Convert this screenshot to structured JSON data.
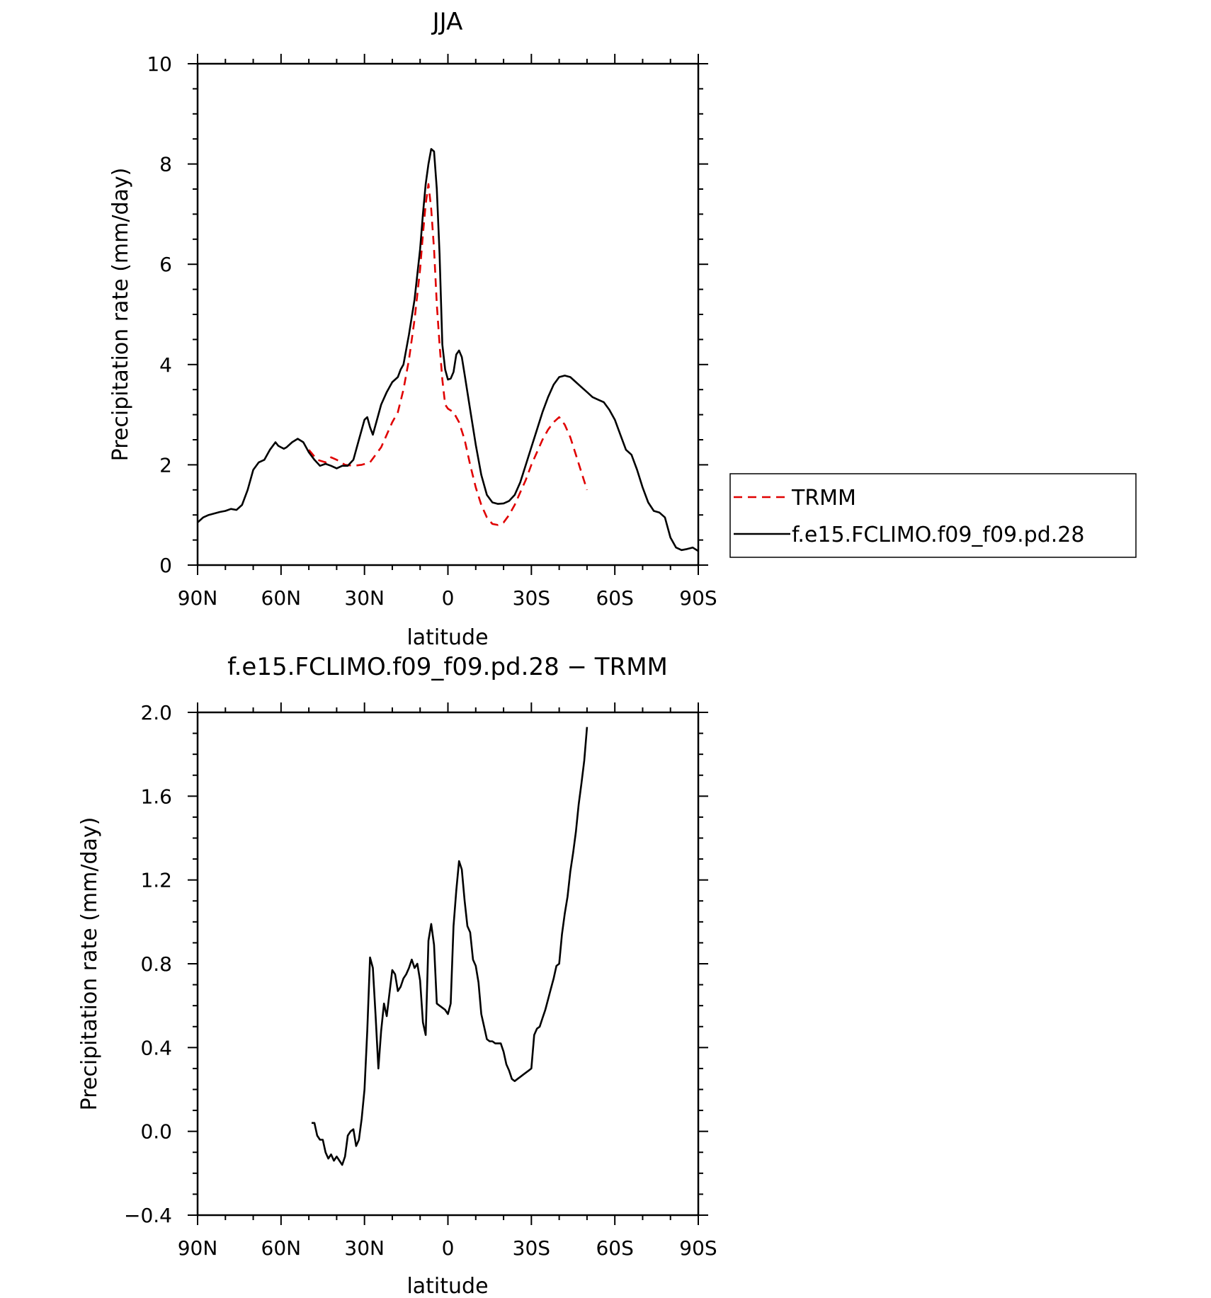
{
  "chart_data": [
    {
      "type": "line",
      "title": "JJA",
      "xlabel": "latitude",
      "ylabel": "Precipitation rate (mm/day)",
      "xlim": [
        90,
        -90
      ],
      "ylim": [
        0,
        10
      ],
      "xticks": [
        90,
        60,
        30,
        0,
        -30,
        -60,
        -90
      ],
      "xtick_labels": [
        "90N",
        "60N",
        "30N",
        "0",
        "30S",
        "60S",
        "90S"
      ],
      "yticks": [
        0,
        2,
        4,
        6,
        8,
        10
      ],
      "ytick_labels": [
        "0",
        "2",
        "4",
        "6",
        "8",
        "10"
      ],
      "legend_placement": "right",
      "series": [
        {
          "name": "TRMM",
          "color": "#e00000",
          "dash": true,
          "x": [
            50,
            47,
            44,
            42,
            40,
            37,
            34,
            31,
            28,
            26,
            24,
            22,
            20,
            18,
            16,
            14,
            12,
            10,
            9,
            8,
            7,
            6,
            5,
            4,
            3,
            2,
            1,
            0,
            -2,
            -4,
            -6,
            -8,
            -10,
            -12,
            -14,
            -16,
            -18,
            -20,
            -22,
            -24,
            -26,
            -28,
            -30,
            -32,
            -34,
            -36,
            -38,
            -40,
            -42,
            -44,
            -46,
            -48,
            -50
          ],
          "values": [
            2.3,
            2.1,
            2.05,
            2.15,
            2.1,
            2.0,
            1.98,
            2.0,
            2.05,
            2.2,
            2.35,
            2.6,
            2.85,
            3.05,
            3.5,
            4.1,
            4.9,
            5.9,
            6.6,
            7.2,
            7.6,
            7.1,
            6.3,
            5.2,
            4.4,
            3.7,
            3.2,
            3.12,
            3.05,
            2.85,
            2.5,
            2.0,
            1.55,
            1.2,
            0.95,
            0.82,
            0.8,
            0.85,
            1.0,
            1.2,
            1.45,
            1.7,
            2.0,
            2.25,
            2.5,
            2.7,
            2.85,
            2.95,
            2.8,
            2.55,
            2.2,
            1.85,
            1.5
          ]
        },
        {
          "name": "f.e15.FCLIMO.f09_f09.pd.28",
          "color": "#000000",
          "dash": false,
          "x": [
            90,
            88,
            86,
            84,
            82,
            80,
            78,
            76,
            74,
            72,
            70,
            68,
            66,
            64,
            62,
            61,
            60,
            59,
            58,
            56,
            54,
            52,
            50,
            48,
            46,
            44,
            42,
            40,
            38,
            36,
            34,
            32,
            30,
            29,
            28,
            27,
            25,
            24,
            22,
            20,
            18,
            17,
            16,
            14,
            12,
            10,
            9,
            8,
            7,
            6,
            5,
            4,
            3,
            2,
            1,
            0,
            -1,
            -2,
            -3,
            -4,
            -5,
            -6,
            -8,
            -10,
            -12,
            -14,
            -16,
            -18,
            -20,
            -22,
            -24,
            -26,
            -28,
            -30,
            -32,
            -34,
            -36,
            -38,
            -40,
            -42,
            -44,
            -46,
            -48,
            -50,
            -52,
            -54,
            -56,
            -58,
            -60,
            -62,
            -64,
            -66,
            -68,
            -70,
            -72,
            -74,
            -76,
            -78,
            -80,
            -82,
            -84,
            -86,
            -88,
            -90
          ],
          "values": [
            0.85,
            0.95,
            1.0,
            1.03,
            1.06,
            1.08,
            1.12,
            1.1,
            1.2,
            1.5,
            1.9,
            2.05,
            2.1,
            2.3,
            2.45,
            2.38,
            2.35,
            2.32,
            2.35,
            2.45,
            2.52,
            2.45,
            2.25,
            2.1,
            1.98,
            2.02,
            1.98,
            1.93,
            1.98,
            1.98,
            2.1,
            2.5,
            2.9,
            2.95,
            2.75,
            2.6,
            3.0,
            3.2,
            3.45,
            3.65,
            3.75,
            3.9,
            4.0,
            4.6,
            5.3,
            6.3,
            7.0,
            7.6,
            8.0,
            8.3,
            8.25,
            7.5,
            6.2,
            4.4,
            3.9,
            3.7,
            3.72,
            3.85,
            4.2,
            4.28,
            4.15,
            3.8,
            3.1,
            2.4,
            1.8,
            1.4,
            1.25,
            1.22,
            1.23,
            1.28,
            1.4,
            1.65,
            2.0,
            2.35,
            2.7,
            3.05,
            3.35,
            3.6,
            3.75,
            3.78,
            3.75,
            3.65,
            3.55,
            3.45,
            3.35,
            3.3,
            3.25,
            3.1,
            2.9,
            2.6,
            2.3,
            2.2,
            1.9,
            1.55,
            1.25,
            1.08,
            1.05,
            0.95,
            0.55,
            0.35,
            0.3,
            0.32,
            0.35,
            0.28
          ]
        }
      ]
    },
    {
      "type": "line",
      "title": "f.e15.FCLIMO.f09_f09.pd.28 − TRMM",
      "xlabel": "latitude",
      "ylabel": "Precipitation rate (mm/day)",
      "xlim": [
        90,
        -90
      ],
      "ylim": [
        -0.4,
        2.0
      ],
      "xticks": [
        90,
        60,
        30,
        0,
        -30,
        -60,
        -90
      ],
      "xtick_labels": [
        "90N",
        "60N",
        "30N",
        "0",
        "30S",
        "60S",
        "90S"
      ],
      "yticks": [
        -0.4,
        0.0,
        0.4,
        0.8,
        1.2,
        1.6,
        2.0
      ],
      "ytick_labels": [
        "−0.4",
        "0.0",
        "0.4",
        "0.8",
        "1.2",
        "1.6",
        "2.0"
      ],
      "series": [
        {
          "color": "#000000",
          "dash": false,
          "x": [
            49,
            48,
            47,
            46,
            45,
            44,
            43,
            42,
            41,
            40,
            39,
            38,
            37,
            36,
            35,
            34,
            33,
            32,
            31,
            30,
            29,
            28,
            27,
            26,
            25,
            24,
            23,
            22,
            21,
            20,
            19,
            18,
            17,
            16,
            15,
            14,
            13,
            12,
            11,
            10,
            9,
            8,
            7,
            6,
            5,
            4,
            3,
            2,
            1,
            0,
            -1,
            -2,
            -3,
            -4,
            -5,
            -6,
            -7,
            -8,
            -9,
            -10,
            -11,
            -12,
            -13,
            -14,
            -15,
            -16,
            -17,
            -18,
            -19,
            -20,
            -21,
            -22,
            -23,
            -24,
            -25,
            -26,
            -27,
            -28,
            -29,
            -30,
            -31,
            -32,
            -33,
            -34,
            -35,
            -36,
            -37,
            -38,
            -39,
            -40,
            -41,
            -42,
            -43,
            -44,
            -45,
            -46,
            -47,
            -48,
            -49,
            -50
          ],
          "values": [
            0.04,
            0.04,
            -0.02,
            -0.04,
            -0.04,
            -0.1,
            -0.13,
            -0.11,
            -0.14,
            -0.12,
            -0.14,
            -0.16,
            -0.12,
            -0.02,
            0.0,
            0.01,
            -0.07,
            -0.04,
            0.06,
            0.2,
            0.48,
            0.83,
            0.78,
            0.55,
            0.3,
            0.48,
            0.61,
            0.55,
            0.66,
            0.77,
            0.75,
            0.67,
            0.69,
            0.73,
            0.75,
            0.78,
            0.82,
            0.78,
            0.8,
            0.72,
            0.52,
            0.46,
            0.91,
            0.99,
            0.89,
            0.61,
            0.6,
            0.59,
            0.58,
            0.56,
            0.61,
            0.98,
            1.15,
            1.29,
            1.25,
            1.1,
            0.98,
            0.95,
            0.82,
            0.79,
            0.71,
            0.56,
            0.5,
            0.44,
            0.43,
            0.43,
            0.42,
            0.42,
            0.42,
            0.38,
            0.32,
            0.29,
            0.25,
            0.24,
            0.25,
            0.26,
            0.27,
            0.28,
            0.29,
            0.3,
            0.46,
            0.49,
            0.5,
            0.54,
            0.58,
            0.63,
            0.68,
            0.73,
            0.79,
            0.8,
            0.94,
            1.04,
            1.12,
            1.24,
            1.33,
            1.43,
            1.56,
            1.66,
            1.77,
            1.93
          ]
        }
      ]
    }
  ]
}
